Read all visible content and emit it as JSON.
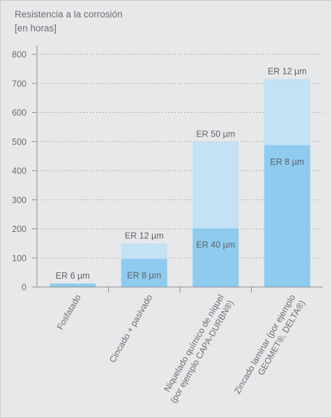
{
  "chart_data": {
    "type": "bar",
    "stacked": true,
    "title_lines": [
      "Resistencia a la corrosión",
      "[en horas]"
    ],
    "xlabel": "",
    "ylabel": "",
    "ylim": [
      0,
      800
    ],
    "yticks": [
      0,
      100,
      200,
      300,
      400,
      500,
      600,
      700,
      800
    ],
    "grid": "horizontal dotted",
    "categories": [
      [
        "Fosfatado"
      ],
      [
        "Cincado + pasivado"
      ],
      [
        "Niquelado químico de níquel",
        "(por ejemplo CAPA-DURBN®)"
      ],
      [
        "Zincado laminar (por ejemplo",
        "GEOMET®, DELTA®)"
      ]
    ],
    "series": [
      {
        "color": "#8ecbef",
        "values": [
          12,
          97,
          202,
          488
        ],
        "labels": [
          "ER 6 µm",
          "ER 8 µm",
          "ER 40 µm",
          "ER 8 µm"
        ]
      },
      {
        "color": "#c4e1f5",
        "values": [
          0,
          53,
          298,
          227
        ],
        "labels": [
          "",
          "ER 12 µm",
          "ER 50 µm",
          "ER 12 µm"
        ]
      }
    ]
  }
}
